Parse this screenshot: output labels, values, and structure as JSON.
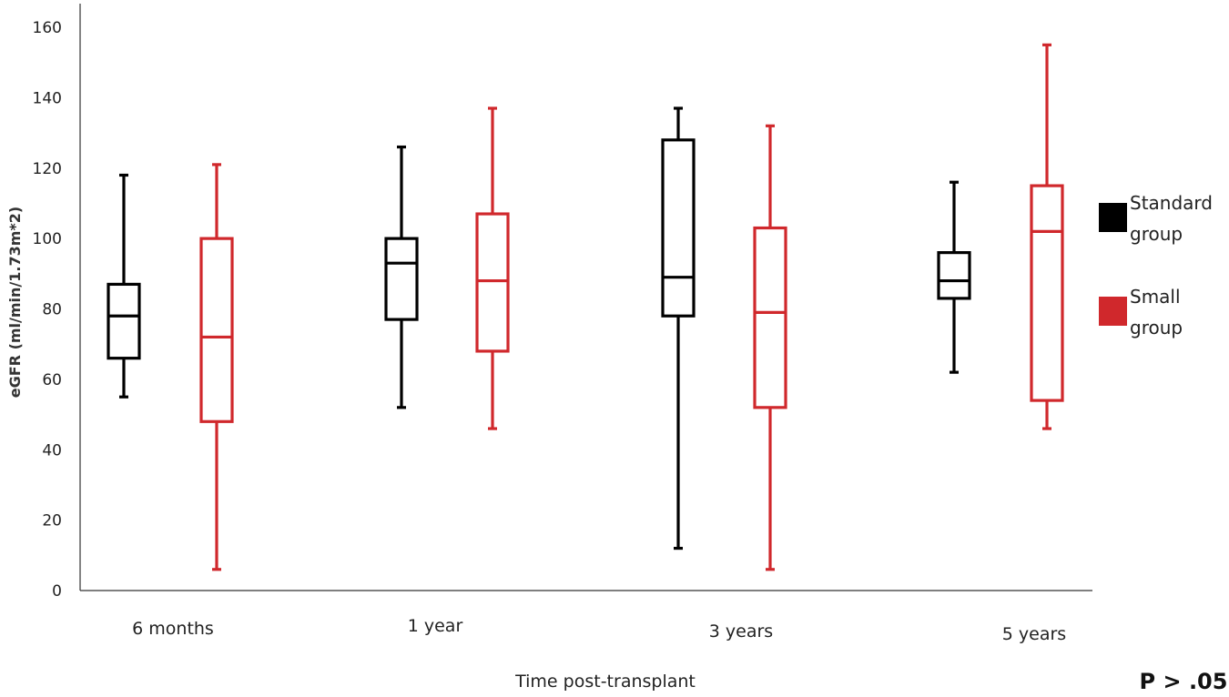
{
  "chart_data": {
    "type": "box",
    "ylabel": "eGFR (ml/min/1.73m*2)",
    "xlabel": "Time post-transplant",
    "ylim": [
      0,
      160
    ],
    "yticks": [
      0,
      20,
      40,
      60,
      80,
      100,
      120,
      140,
      160
    ],
    "categories": [
      "6 months",
      "1 year",
      "3 years",
      "5 years"
    ],
    "series": [
      {
        "name": "Standard group",
        "color": "#000000",
        "boxes": [
          {
            "min": 55,
            "q1": 66,
            "median": 78,
            "q3": 87,
            "max": 118
          },
          {
            "min": 52,
            "q1": 77,
            "median": 93,
            "q3": 100,
            "max": 126
          },
          {
            "min": 12,
            "q1": 78,
            "median": 89,
            "q3": 128,
            "max": 137
          },
          {
            "min": 62,
            "q1": 83,
            "median": 88,
            "q3": 96,
            "max": 116
          }
        ]
      },
      {
        "name": "Small group",
        "color": "#d0282c",
        "boxes": [
          {
            "min": 6,
            "q1": 48,
            "median": 72,
            "q3": 100,
            "max": 121
          },
          {
            "min": 46,
            "q1": 68,
            "median": 88,
            "q3": 107,
            "max": 137
          },
          {
            "min": 6,
            "q1": 52,
            "median": 79,
            "q3": 103,
            "max": 132
          },
          {
            "min": 46,
            "q1": 54,
            "median": 102,
            "q3": 115,
            "max": 155
          }
        ]
      }
    ],
    "legend": {
      "placement": "right",
      "entries": [
        {
          "line1": "Standard",
          "line2": "group",
          "color": "#000000"
        },
        {
          "line1": "Small",
          "line2": "group",
          "color": "#d0282c"
        }
      ]
    },
    "annotation": "P > .05",
    "grid": false
  }
}
